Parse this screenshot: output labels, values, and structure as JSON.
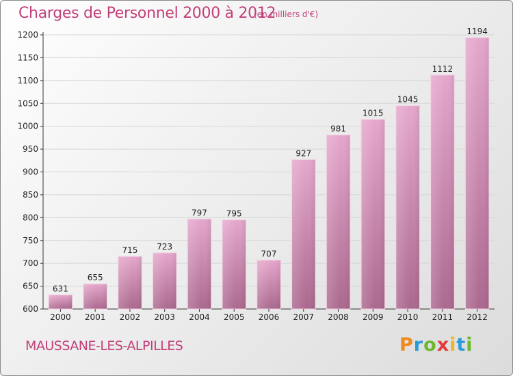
{
  "title": "Charges de Personnel 2000 à 2012",
  "subtitle": "(en milliers d'€)",
  "place": "MAUSSANE-LES-ALPILLES",
  "logo": "Proxiti",
  "colors": {
    "title": "#c2407a",
    "bar_top": "#e3a4c9",
    "bar_bottom": "#ad6a90"
  },
  "chart_data": {
    "type": "bar",
    "categories": [
      "2000",
      "2001",
      "2002",
      "2003",
      "2004",
      "2005",
      "2006",
      "2007",
      "2008",
      "2009",
      "2010",
      "2011",
      "2012"
    ],
    "values": [
      631,
      655,
      715,
      723,
      797,
      795,
      707,
      927,
      981,
      1015,
      1045,
      1112,
      1194
    ],
    "ylim": [
      600,
      1200
    ],
    "yticks": [
      600,
      650,
      700,
      750,
      800,
      850,
      900,
      950,
      1000,
      1050,
      1100,
      1150,
      1200
    ],
    "grid": true,
    "title": "Charges de Personnel 2000 à 2012",
    "xlabel": "",
    "ylabel": ""
  }
}
